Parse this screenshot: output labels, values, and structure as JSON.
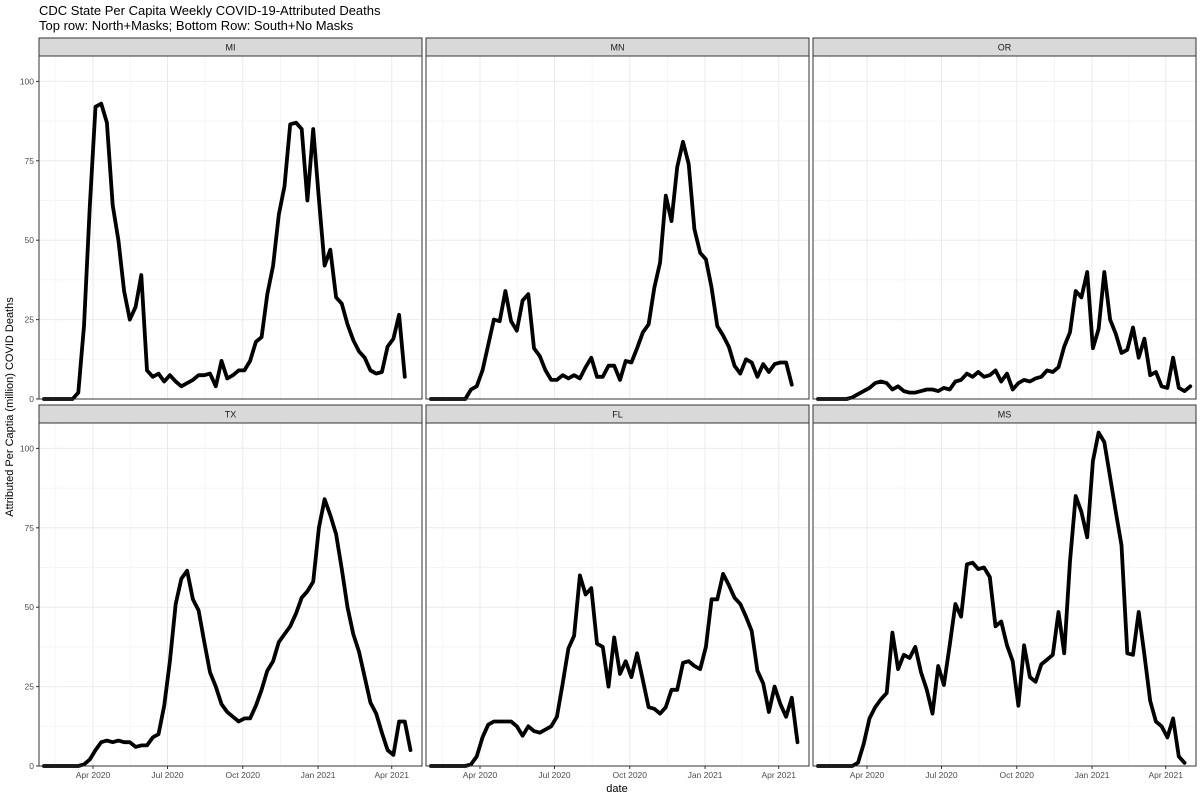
{
  "chart_data": {
    "type": "line",
    "title": "CDC State Per Capita Weekly COVID-19-Attributed Deaths",
    "subtitle": "Top row: North+Masks; Bottom Row: South+No Masks",
    "xlabel": "date",
    "ylabel": "Attributed Per Captia (million) COVID Deaths",
    "x_ticks": [
      "Apr 2020",
      "Jul 2020",
      "Oct 2020",
      "Jan 2021",
      "Apr 2021"
    ],
    "y_ticks": [
      "0",
      "25",
      "50",
      "75",
      "100"
    ],
    "ylim": [
      0,
      108
    ],
    "xlim": [
      "2020-01-26",
      "2021-05-08"
    ],
    "grid": true,
    "line_color": "#000000",
    "week_start": "2020-02-01",
    "week_step_days": 7,
    "panels": [
      {
        "name": "MI",
        "values": [
          0,
          0,
          0,
          0,
          0,
          0,
          2,
          23,
          60,
          92,
          93,
          87,
          61,
          50,
          34,
          25,
          29,
          39,
          9,
          7,
          8,
          5.5,
          7.5,
          5.5,
          4,
          5,
          6,
          7.5,
          7.5,
          8,
          4,
          12,
          6.5,
          7.5,
          9,
          9,
          12,
          18,
          19.5,
          33,
          42,
          58,
          67,
          86.5,
          87,
          85,
          62.5,
          85,
          63,
          42,
          47,
          32,
          30,
          23.5,
          18.5,
          15,
          13,
          9,
          8,
          8.5,
          16.5,
          19,
          26.5,
          7
        ]
      },
      {
        "name": "MN",
        "values": [
          0,
          0,
          0,
          0,
          0,
          0,
          0,
          3,
          4,
          9,
          17,
          25,
          24.5,
          34,
          24.5,
          21.5,
          31,
          33,
          16,
          13.5,
          9,
          6,
          6,
          7.5,
          6.5,
          7.5,
          6.5,
          10,
          13,
          7,
          7,
          10.5,
          10.5,
          6,
          12,
          11.5,
          16,
          21,
          23.5,
          35,
          43,
          64,
          56,
          73,
          81,
          74,
          53.5,
          46,
          44,
          35,
          23,
          20,
          16.5,
          10.5,
          8,
          12.5,
          11.5,
          7,
          11,
          8.5,
          11,
          11.5,
          11.5,
          4.5
        ]
      },
      {
        "name": "OR",
        "values": [
          0,
          0,
          0,
          0,
          0,
          0,
          0.5,
          1.5,
          2.5,
          3.5,
          5,
          5.5,
          5,
          3,
          4,
          2.5,
          2,
          2,
          2.5,
          3,
          3,
          2.5,
          3.5,
          3,
          5.5,
          6,
          8,
          7,
          8.5,
          7,
          7.5,
          9,
          5.5,
          8,
          3,
          5,
          6,
          5.5,
          6.5,
          7,
          9,
          8.5,
          10,
          16.5,
          21,
          34,
          32,
          40,
          16,
          22,
          40,
          25,
          20.5,
          14.5,
          15.5,
          22.5,
          13,
          19,
          7.5,
          8.5,
          4,
          3.5,
          13,
          3.5,
          2.5,
          4
        ]
      },
      {
        "name": "TX",
        "values": [
          0,
          0,
          0,
          0,
          0,
          0,
          0,
          0.5,
          2,
          5,
          7.5,
          8,
          7.5,
          8,
          7.5,
          7.5,
          6,
          6.5,
          6.5,
          9,
          10,
          19,
          33,
          51,
          59,
          61.5,
          52.5,
          49,
          39,
          29.5,
          25,
          19.5,
          17,
          15.5,
          14,
          15,
          15,
          19,
          24,
          30,
          33,
          39,
          41.5,
          44,
          48,
          53,
          55,
          58,
          75,
          84,
          79,
          73,
          62,
          50,
          41.5,
          36,
          28,
          20,
          16.5,
          10.5,
          5,
          3.5,
          14,
          14,
          5
        ]
      },
      {
        "name": "FL",
        "values": [
          0,
          0,
          0,
          0,
          0,
          0,
          0,
          0.5,
          3,
          9,
          13,
          14,
          14,
          14,
          14,
          12.5,
          9.5,
          12.5,
          11,
          10.5,
          11.5,
          12.5,
          15.5,
          26,
          37,
          41,
          60,
          54,
          56,
          38.5,
          37.5,
          25,
          40.5,
          29,
          33,
          28,
          35.5,
          27,
          18.5,
          18,
          16.5,
          18.5,
          24,
          24,
          32.5,
          33,
          31.5,
          30.5,
          37.5,
          52.5,
          52.5,
          60.5,
          57,
          53,
          51,
          47,
          42.5,
          30,
          26,
          17,
          25,
          19.5,
          15.5,
          21.5,
          7.5
        ]
      },
      {
        "name": "MS",
        "values": [
          0,
          0,
          0,
          0,
          0,
          0,
          0,
          1,
          7,
          15,
          18.5,
          21,
          23,
          42,
          30.5,
          35,
          34,
          37.5,
          29.5,
          24,
          16.5,
          31.5,
          25.5,
          38,
          51,
          47,
          63.5,
          64,
          62,
          62.5,
          59.5,
          44,
          45.5,
          38,
          33,
          19,
          38,
          28,
          26.5,
          32,
          33.5,
          35,
          48.5,
          35.5,
          64.5,
          85,
          80,
          72,
          96,
          105,
          102,
          91,
          80,
          69.5,
          35.5,
          35,
          48.5,
          35,
          20.5,
          14,
          12.5,
          9,
          15,
          3,
          1
        ]
      }
    ]
  }
}
